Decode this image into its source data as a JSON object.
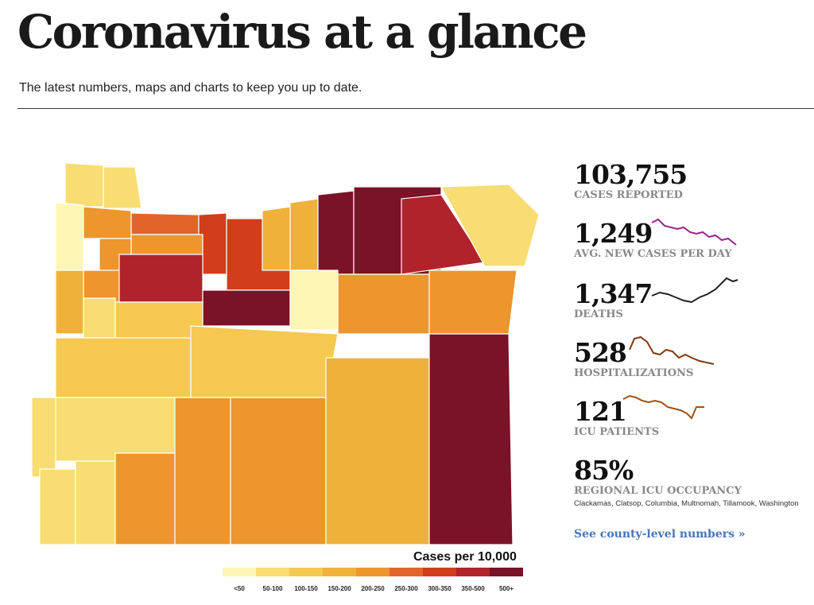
{
  "header": {
    "title": "Coronavirus at a glance",
    "subtitle": "The latest numbers, maps and charts to keep you up to date."
  },
  "stats": [
    {
      "value": "103,755",
      "label": "CASES REPORTED"
    },
    {
      "value": "1,249",
      "label": "AVG. NEW CASES PER DAY",
      "spark_color": "#a0208c"
    },
    {
      "value": "1,347",
      "label": "DEATHS",
      "spark_color": "#222222"
    },
    {
      "value": "528",
      "label": "HOSPITALIZATIONS",
      "spark_color": "#7a3a10"
    },
    {
      "value": "121",
      "label": "ICU PATIENTS",
      "spark_color": "#a0520f"
    },
    {
      "value": "85%",
      "label": "REGIONAL ICU OCCUPANCY",
      "note": "Clackamas, Clatsop, Columbia, Multnomah, Tillamook, Washington"
    }
  ],
  "link": "See county-level numbers »",
  "legend": {
    "title": "Cases per 10,000",
    "bins": [
      {
        "label": "<50",
        "color": "#fef6b5"
      },
      {
        "label": "50-100",
        "color": "#f7dd72"
      },
      {
        "label": "100-150",
        "color": "#f5c850"
      },
      {
        "label": "150-200",
        "color": "#efb13a"
      },
      {
        "label": "200-250",
        "color": "#ec962d"
      },
      {
        "label": "250-300",
        "color": "#e3642a"
      },
      {
        "label": "300-350",
        "color": "#d13e1c"
      },
      {
        "label": "350-500",
        "color": "#b0232a"
      },
      {
        "label": "500+",
        "color": "#7a1228"
      }
    ]
  }
}
